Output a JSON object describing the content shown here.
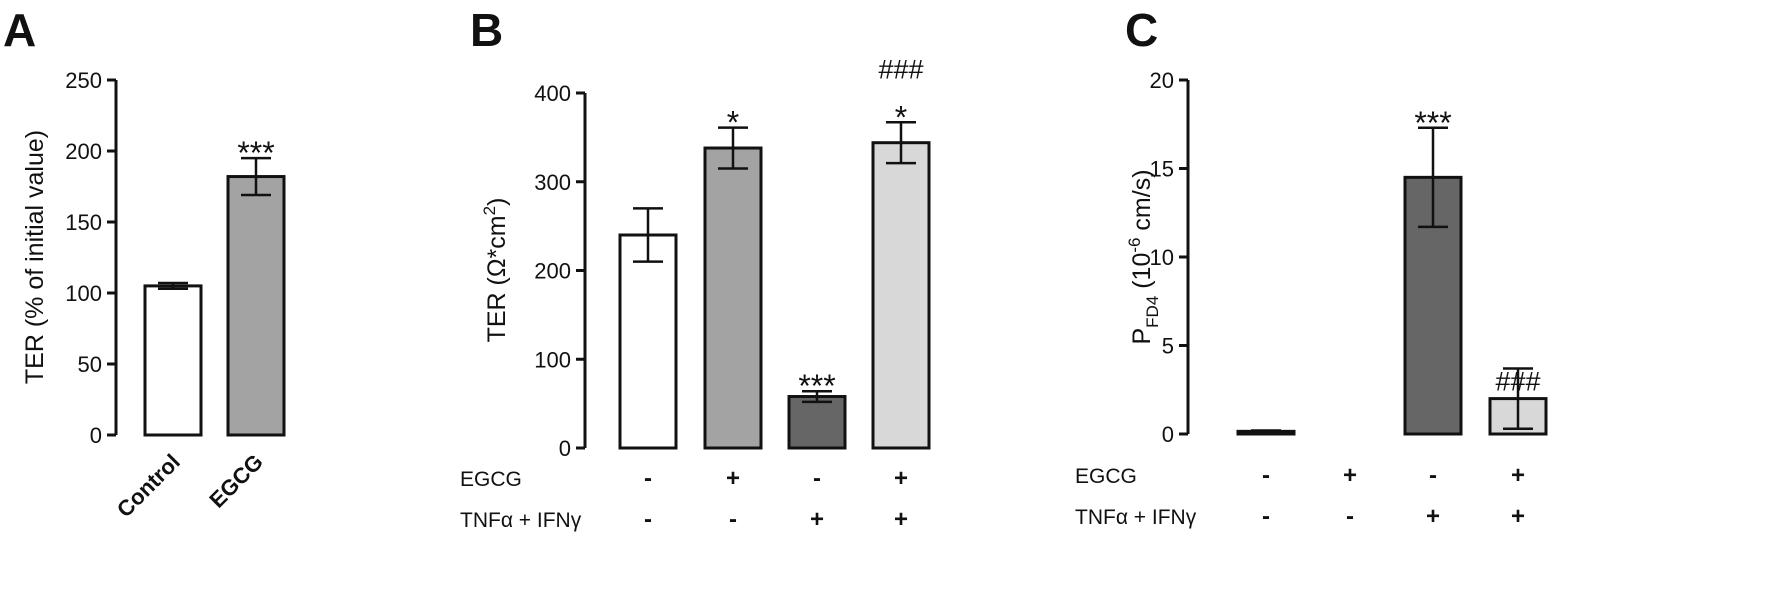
{
  "panels": [
    {
      "letter": "A",
      "chart_data": {
        "type": "bar",
        "ylabel": "TER (% of initial value)",
        "ylim": [
          0,
          250
        ],
        "yticks": [
          0,
          50,
          100,
          150,
          200,
          250
        ],
        "categories": [
          "Control",
          "EGCG"
        ],
        "values": [
          105,
          182
        ],
        "errors": [
          2,
          13
        ],
        "colors": [
          "#ffffff",
          "#a3a3a3"
        ],
        "significance": [
          "",
          "***"
        ],
        "hash": [
          "",
          ""
        ]
      }
    },
    {
      "letter": "B",
      "chart_data": {
        "type": "bar",
        "ylabel_main": "TER (Ω*cm",
        "ylabel_sup": "2",
        "ylabel_tail": ")",
        "ylim": [
          0,
          400
        ],
        "yticks": [
          0,
          100,
          200,
          300,
          400
        ],
        "values": [
          240,
          338,
          58,
          344
        ],
        "errors": [
          30,
          23,
          6,
          23
        ],
        "colors": [
          "#ffffff",
          "#a3a3a3",
          "#666666",
          "#d8d8d8"
        ],
        "significance": [
          "",
          "*",
          "***",
          "*"
        ],
        "hash": [
          "",
          "",
          "",
          "###"
        ],
        "conditions": [
          {
            "label": "EGCG",
            "signs": [
              "-",
              "+",
              "-",
              "+"
            ]
          },
          {
            "label": "TNFα + IFNγ",
            "signs": [
              "-",
              "-",
              "+",
              "+"
            ]
          }
        ]
      }
    },
    {
      "letter": "C",
      "chart_data": {
        "type": "bar",
        "ylabel_main": "P",
        "ylabel_sub": "FD4",
        "ylabel_mid": " (10",
        "ylabel_sup": "-6",
        "ylabel_tail": " cm/s)",
        "ylim": [
          0,
          20
        ],
        "yticks": [
          0,
          5,
          10,
          15,
          20
        ],
        "values": [
          0.15,
          0,
          14.5,
          2.0
        ],
        "errors": [
          0.05,
          0,
          2.8,
          1.7
        ],
        "colors": [
          "#ffffff",
          "#ffffff",
          "#666666",
          "#d8d8d8"
        ],
        "significance": [
          "",
          "",
          "***",
          ""
        ],
        "hash": [
          "",
          "",
          "",
          "###"
        ],
        "conditions": [
          {
            "label": "EGCG",
            "signs": [
              "-",
              "+",
              "-",
              "+"
            ]
          },
          {
            "label": "TNFα + IFNγ",
            "signs": [
              "-",
              "-",
              "+",
              "+"
            ]
          }
        ]
      }
    }
  ]
}
